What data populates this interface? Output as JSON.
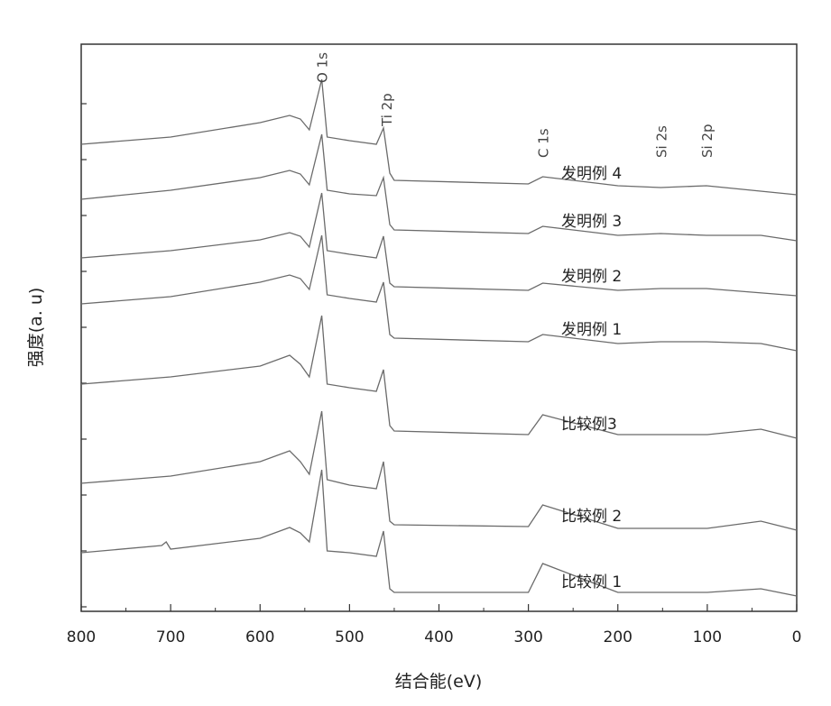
{
  "chart_data": {
    "type": "line",
    "title": "",
    "xlabel": "结合能(eV)",
    "ylabel": "强度(a. u)",
    "xlim": [
      800,
      0
    ],
    "x_reversed": true,
    "x_ticks": [
      800,
      700,
      600,
      500,
      400,
      300,
      200,
      100,
      0
    ],
    "grid": false,
    "y_units": "arbitrary",
    "peak_labels": [
      {
        "text": "O 1s",
        "x": 531
      },
      {
        "text": "Ti 2p",
        "x": 459
      },
      {
        "text": "C 1s",
        "x": 284
      },
      {
        "text": "Si 2s",
        "x": 152
      },
      {
        "text": "Si 2p",
        "x": 101
      }
    ],
    "series": [
      {
        "name": "发明例 4",
        "values": [
          [
            800,
            0.26
          ],
          [
            700,
            0.3
          ],
          [
            600,
            0.38
          ],
          [
            567,
            0.42
          ],
          [
            555,
            0.4
          ],
          [
            545,
            0.34
          ],
          [
            531,
            0.62
          ],
          [
            525,
            0.3
          ],
          [
            500,
            0.28
          ],
          [
            470,
            0.26
          ],
          [
            462,
            0.35
          ],
          [
            455,
            0.1
          ],
          [
            450,
            0.06
          ],
          [
            300,
            0.04
          ],
          [
            284,
            0.08
          ],
          [
            200,
            0.03
          ],
          [
            152,
            0.02
          ],
          [
            101,
            0.03
          ],
          [
            0,
            -0.02
          ]
        ]
      },
      {
        "name": "发明例 3",
        "values": [
          [
            800,
            0.22
          ],
          [
            700,
            0.27
          ],
          [
            600,
            0.34
          ],
          [
            567,
            0.38
          ],
          [
            555,
            0.36
          ],
          [
            545,
            0.3
          ],
          [
            531,
            0.58
          ],
          [
            525,
            0.27
          ],
          [
            500,
            0.25
          ],
          [
            470,
            0.24
          ],
          [
            462,
            0.34
          ],
          [
            455,
            0.08
          ],
          [
            450,
            0.05
          ],
          [
            300,
            0.03
          ],
          [
            284,
            0.07
          ],
          [
            200,
            0.02
          ],
          [
            152,
            0.03
          ],
          [
            101,
            0.02
          ],
          [
            40,
            0.02
          ],
          [
            0,
            -0.01
          ]
        ]
      },
      {
        "name": "发明例 2",
        "values": [
          [
            800,
            0.2
          ],
          [
            700,
            0.24
          ],
          [
            600,
            0.3
          ],
          [
            567,
            0.34
          ],
          [
            555,
            0.32
          ],
          [
            545,
            0.26
          ],
          [
            531,
            0.56
          ],
          [
            525,
            0.24
          ],
          [
            500,
            0.22
          ],
          [
            470,
            0.2
          ],
          [
            462,
            0.32
          ],
          [
            455,
            0.06
          ],
          [
            450,
            0.04
          ],
          [
            300,
            0.02
          ],
          [
            284,
            0.06
          ],
          [
            200,
            0.02
          ],
          [
            152,
            0.03
          ],
          [
            101,
            0.03
          ],
          [
            0,
            -0.01
          ]
        ]
      },
      {
        "name": "发明例 1",
        "values": [
          [
            800,
            0.24
          ],
          [
            700,
            0.28
          ],
          [
            600,
            0.36
          ],
          [
            567,
            0.4
          ],
          [
            555,
            0.38
          ],
          [
            545,
            0.32
          ],
          [
            531,
            0.62
          ],
          [
            525,
            0.29
          ],
          [
            500,
            0.27
          ],
          [
            470,
            0.25
          ],
          [
            462,
            0.36
          ],
          [
            455,
            0.07
          ],
          [
            450,
            0.05
          ],
          [
            300,
            0.03
          ],
          [
            284,
            0.07
          ],
          [
            200,
            0.02
          ],
          [
            152,
            0.03
          ],
          [
            101,
            0.03
          ],
          [
            40,
            0.02
          ],
          [
            0,
            -0.02
          ]
        ]
      },
      {
        "name": "比较例3",
        "values": [
          [
            800,
            0.32
          ],
          [
            700,
            0.36
          ],
          [
            600,
            0.42
          ],
          [
            567,
            0.48
          ],
          [
            555,
            0.43
          ],
          [
            545,
            0.36
          ],
          [
            531,
            0.7
          ],
          [
            525,
            0.32
          ],
          [
            500,
            0.3
          ],
          [
            470,
            0.28
          ],
          [
            462,
            0.4
          ],
          [
            455,
            0.09
          ],
          [
            450,
            0.06
          ],
          [
            300,
            0.04
          ],
          [
            284,
            0.15
          ],
          [
            200,
            0.04
          ],
          [
            100,
            0.04
          ],
          [
            40,
            0.07
          ],
          [
            0,
            0.02
          ]
        ]
      },
      {
        "name": "比较例 2",
        "values": [
          [
            800,
            0.28
          ],
          [
            700,
            0.32
          ],
          [
            600,
            0.4
          ],
          [
            567,
            0.46
          ],
          [
            555,
            0.4
          ],
          [
            545,
            0.33
          ],
          [
            531,
            0.68
          ],
          [
            525,
            0.3
          ],
          [
            500,
            0.27
          ],
          [
            470,
            0.25
          ],
          [
            462,
            0.4
          ],
          [
            455,
            0.07
          ],
          [
            450,
            0.05
          ],
          [
            300,
            0.04
          ],
          [
            284,
            0.16
          ],
          [
            200,
            0.03
          ],
          [
            100,
            0.03
          ],
          [
            40,
            0.07
          ],
          [
            0,
            0.02
          ]
        ]
      },
      {
        "name": "比较例 1",
        "values": [
          [
            800,
            0.26
          ],
          [
            710,
            0.3
          ],
          [
            705,
            0.32
          ],
          [
            700,
            0.28
          ],
          [
            600,
            0.34
          ],
          [
            567,
            0.4
          ],
          [
            555,
            0.37
          ],
          [
            545,
            0.32
          ],
          [
            531,
            0.72
          ],
          [
            525,
            0.27
          ],
          [
            500,
            0.26
          ],
          [
            470,
            0.24
          ],
          [
            462,
            0.38
          ],
          [
            455,
            0.06
          ],
          [
            450,
            0.04
          ],
          [
            300,
            0.04
          ],
          [
            284,
            0.2
          ],
          [
            200,
            0.04
          ],
          [
            100,
            0.04
          ],
          [
            40,
            0.06
          ],
          [
            0,
            0.02
          ]
        ]
      }
    ]
  }
}
